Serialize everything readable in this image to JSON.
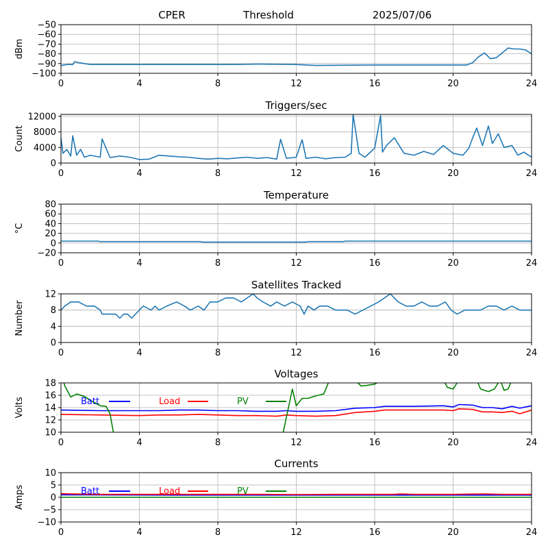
{
  "header": {
    "station": "CPER",
    "mode": "Threshold",
    "date": "2025/07/06"
  },
  "chart_data": [
    {
      "type": "line",
      "title": "",
      "xlabel": "",
      "ylabel": "dBm",
      "xlim": [
        0,
        24
      ],
      "ylim": [
        -100,
        -50
      ],
      "xticks": [
        "0",
        "4",
        "8",
        "12",
        "16",
        "20",
        "24"
      ],
      "yticks": [
        "−100",
        "−90",
        "−80",
        "−70",
        "−60",
        "−50"
      ],
      "ytick_values": [
        -100,
        -90,
        -80,
        -70,
        -60,
        -50
      ],
      "grid": true,
      "series": [
        {
          "color": "#1f77b4",
          "x": [
            0,
            0.3,
            0.6,
            0.7,
            0.9,
            1.5,
            3,
            5,
            7,
            9,
            10,
            12,
            13,
            16,
            18,
            20,
            20.7,
            21,
            21.3,
            21.6,
            21.9,
            22.2,
            22.5,
            22.8,
            23.1,
            23.4,
            23.7,
            24
          ],
          "y": [
            -92,
            -91,
            -91,
            -88,
            -89,
            -91,
            -91,
            -91,
            -91,
            -91,
            -90.5,
            -91,
            -92,
            -91.5,
            -91.5,
            -91.5,
            -91.5,
            -89,
            -83,
            -79,
            -85,
            -84,
            -79,
            -74,
            -75,
            -75,
            -76,
            -80
          ]
        }
      ]
    },
    {
      "type": "line",
      "title": "Triggers/sec",
      "xlabel": "",
      "ylabel": "Count",
      "xlim": [
        0,
        24
      ],
      "ylim": [
        0,
        12500
      ],
      "xticks": [
        "0",
        "4",
        "8",
        "12",
        "16",
        "20",
        "24"
      ],
      "yticks": [
        "0",
        "4000",
        "8000",
        "12000"
      ],
      "ytick_values": [
        0,
        4000,
        8000,
        12000
      ],
      "grid": true,
      "series": [
        {
          "color": "#1f77b4",
          "x": [
            0,
            0.1,
            0.3,
            0.5,
            0.6,
            0.8,
            1.0,
            1.2,
            1.5,
            2.0,
            2.1,
            2.5,
            3.0,
            3.5,
            4.0,
            4.5,
            5.0,
            5.5,
            6.0,
            6.5,
            7.0,
            7.5,
            8.0,
            8.5,
            9.0,
            9.5,
            10.0,
            10.5,
            11.0,
            11.2,
            11.5,
            12.0,
            12.3,
            12.5,
            13.0,
            13.5,
            14.0,
            14.5,
            14.8,
            14.9,
            15.2,
            15.5,
            16.0,
            16.3,
            16.4,
            16.6,
            17.0,
            17.5,
            18.0,
            18.5,
            19.0,
            19.5,
            20.0,
            20.5,
            20.8,
            21.0,
            21.2,
            21.5,
            21.8,
            22.0,
            22.3,
            22.6,
            23.0,
            23.3,
            23.6,
            24.0
          ],
          "y": [
            6500,
            2500,
            3500,
            1800,
            7000,
            2000,
            3500,
            1500,
            2000,
            1500,
            6200,
            1400,
            1800,
            1500,
            900,
            1000,
            2000,
            1800,
            1600,
            1500,
            1200,
            1000,
            1200,
            1100,
            1300,
            1500,
            1200,
            1400,
            1000,
            6100,
            1200,
            1500,
            6000,
            1200,
            1500,
            1100,
            1400,
            1500,
            2500,
            12500,
            2500,
            1500,
            3800,
            12200,
            2800,
            4500,
            6500,
            2500,
            2000,
            3000,
            2200,
            4500,
            2500,
            2000,
            3800,
            6500,
            9000,
            4500,
            9500,
            5000,
            7500,
            4000,
            4500,
            2000,
            2800,
            1500
          ]
        }
      ]
    },
    {
      "type": "line",
      "title": "Temperature",
      "xlabel": "",
      "ylabel": "°C",
      "xlim": [
        0,
        24
      ],
      "ylim": [
        -20,
        80
      ],
      "xticks": [
        "0",
        "4",
        "8",
        "12",
        "16",
        "20",
        "24"
      ],
      "yticks": [
        "−20",
        "0",
        "20",
        "40",
        "60",
        "80"
      ],
      "ytick_values": [
        -20,
        0,
        20,
        40,
        60,
        80
      ],
      "grid": true,
      "series": [
        {
          "color": "#1f77b4",
          "x": [
            0,
            1.9,
            2.0,
            7.1,
            7.2,
            12.5,
            12.6,
            14.4,
            14.5,
            24
          ],
          "y": [
            4,
            4,
            3,
            3,
            2,
            2,
            3,
            3,
            4,
            4
          ]
        }
      ]
    },
    {
      "type": "line",
      "title": "Satellites Tracked",
      "xlabel": "",
      "ylabel": "Number",
      "xlim": [
        0,
        24
      ],
      "ylim": [
        0,
        12
      ],
      "xticks": [
        "0",
        "4",
        "8",
        "12",
        "16",
        "20",
        "24"
      ],
      "yticks": [
        "0",
        "4",
        "8",
        "12"
      ],
      "ytick_values": [
        0,
        4,
        8,
        12
      ],
      "grid": true,
      "series": [
        {
          "color": "#1f77b4",
          "x": [
            0,
            0.2,
            0.5,
            0.9,
            1.3,
            1.7,
            2.0,
            2.1,
            2.4,
            2.8,
            3.0,
            3.2,
            3.4,
            3.6,
            4.0,
            4.2,
            4.6,
            4.8,
            5.0,
            5.4,
            5.9,
            6.3,
            6.6,
            7.0,
            7.3,
            7.6,
            8.0,
            8.4,
            8.8,
            9.2,
            9.5,
            9.8,
            10.0,
            10.3,
            10.7,
            11.0,
            11.4,
            11.8,
            12.2,
            12.4,
            12.6,
            12.9,
            13.2,
            13.6,
            14.0,
            14.6,
            15.0,
            15.4,
            15.8,
            16.2,
            16.5,
            16.8,
            17.2,
            17.6,
            18.0,
            18.4,
            18.8,
            19.2,
            19.6,
            19.9,
            20.2,
            20.6,
            21.0,
            21.4,
            21.8,
            22.2,
            22.6,
            23.0,
            23.4,
            23.8,
            24.0
          ],
          "y": [
            8,
            9,
            10,
            10,
            9,
            9,
            8,
            7,
            7,
            7,
            6,
            7,
            7,
            6,
            8,
            9,
            8,
            9,
            8,
            9,
            10,
            9,
            8,
            9,
            8,
            10,
            10,
            11,
            11,
            10,
            11,
            12,
            11,
            10,
            9,
            10,
            9,
            10,
            9,
            7,
            9,
            8,
            9,
            9,
            8,
            8,
            7,
            8,
            9,
            10,
            11,
            12,
            10,
            9,
            9,
            10,
            9,
            9,
            10,
            8,
            7,
            8,
            8,
            8,
            9,
            9,
            8,
            9,
            8,
            8,
            8
          ]
        }
      ]
    },
    {
      "type": "line",
      "title": "Voltages",
      "xlabel": "",
      "ylabel": "Volts",
      "xlim": [
        0,
        24
      ],
      "ylim": [
        10,
        18
      ],
      "xticks": [
        "0",
        "4",
        "8",
        "12",
        "16",
        "20",
        "24"
      ],
      "yticks": [
        "10",
        "12",
        "14",
        "16",
        "18"
      ],
      "ytick_values": [
        10,
        12,
        14,
        16,
        18
      ],
      "grid": true,
      "legend": [
        "Batt",
        "Load",
        "PV"
      ],
      "legend_position": "top",
      "series": [
        {
          "name": "Batt",
          "color": "#0000ff",
          "x": [
            0,
            2,
            4,
            5,
            6,
            7,
            8,
            9,
            10,
            11,
            11.5,
            12,
            13,
            14,
            15,
            16,
            16.5,
            18,
            19.5,
            20,
            20.3,
            21,
            21.5,
            22,
            22.5,
            23,
            23.4,
            24
          ],
          "y": [
            13.6,
            13.5,
            13.5,
            13.5,
            13.6,
            13.6,
            13.5,
            13.5,
            13.4,
            13.4,
            13.5,
            13.4,
            13.4,
            13.5,
            13.9,
            14.0,
            14.2,
            14.2,
            14.3,
            14.1,
            14.5,
            14.4,
            14.0,
            14.0,
            13.8,
            14.2,
            13.9,
            14.3
          ]
        },
        {
          "name": "Load",
          "color": "#ff0000",
          "x": [
            0,
            2,
            4,
            5,
            6,
            7,
            8,
            9,
            10,
            11,
            11.5,
            12,
            13,
            14,
            15,
            16,
            16.5,
            18,
            19.5,
            20,
            20.3,
            21,
            21.5,
            22,
            22.5,
            23,
            23.4,
            24
          ],
          "y": [
            12.9,
            12.8,
            12.7,
            12.8,
            12.8,
            12.9,
            12.8,
            12.7,
            12.7,
            12.6,
            12.8,
            12.7,
            12.6,
            12.7,
            13.2,
            13.4,
            13.6,
            13.6,
            13.6,
            13.5,
            13.8,
            13.7,
            13.3,
            13.3,
            13.2,
            13.4,
            13.0,
            13.6
          ]
        },
        {
          "name": "PV",
          "color": "#008000",
          "x": [
            0,
            0.2,
            0.5,
            0.8,
            1.2,
            1.6,
            2.0,
            2.3,
            2.5,
            2.7,
            11.3,
            11.6,
            11.8,
            12.0,
            12.3,
            12.6,
            13.0,
            13.4,
            13.7,
            15.0,
            15.3,
            15.6,
            16.0,
            16.4,
            19.5,
            19.7,
            20.0,
            20.3,
            21.2,
            21.4,
            21.8,
            22.1,
            22.4,
            22.6,
            22.8,
            23.0,
            23.3,
            23.6
          ],
          "y": [
            19.5,
            17.5,
            15.7,
            16.2,
            15.8,
            15.0,
            14.3,
            14.2,
            13.0,
            9.5,
            9.5,
            14.0,
            17.0,
            14.3,
            15.5,
            15.5,
            15.9,
            16.2,
            18.5,
            18.5,
            17.5,
            17.6,
            17.8,
            18.5,
            18.5,
            17.3,
            17.0,
            18.5,
            18.5,
            17.0,
            16.6,
            17.0,
            18.5,
            16.8,
            17.0,
            18.5,
            18.5,
            18.5
          ]
        }
      ]
    },
    {
      "type": "line",
      "title": "Currents",
      "xlabel": "",
      "ylabel": "Amps",
      "xlim": [
        0,
        24
      ],
      "ylim": [
        -10,
        10
      ],
      "xticks": [
        "0",
        "4",
        "8",
        "12",
        "16",
        "20",
        "24"
      ],
      "yticks": [
        "−10",
        "−5",
        "0",
        "5",
        "10"
      ],
      "ytick_values": [
        -10,
        -5,
        0,
        5,
        10
      ],
      "grid": true,
      "legend": [
        "Batt",
        "Load",
        "PV"
      ],
      "legend_position": "top",
      "series": [
        {
          "name": "Batt",
          "color": "#0000ff",
          "x": [
            0,
            6,
            12,
            18,
            24
          ],
          "y": [
            1.0,
            0.9,
            0.9,
            0.9,
            0.9
          ]
        },
        {
          "name": "Load",
          "color": "#ff0000",
          "x": [
            0,
            0.5,
            2,
            4,
            6,
            8,
            10,
            12,
            14,
            16,
            17,
            17.3,
            18,
            20,
            21.5,
            22.5,
            24
          ],
          "y": [
            1.5,
            1.4,
            1.2,
            1.2,
            1.2,
            1.2,
            1.2,
            1.1,
            1.2,
            1.2,
            1.2,
            1.4,
            1.2,
            1.2,
            1.4,
            1.2,
            1.2
          ]
        },
        {
          "name": "PV",
          "color": "#008000",
          "x": [
            0,
            24
          ],
          "y": [
            0,
            0
          ]
        }
      ]
    }
  ]
}
